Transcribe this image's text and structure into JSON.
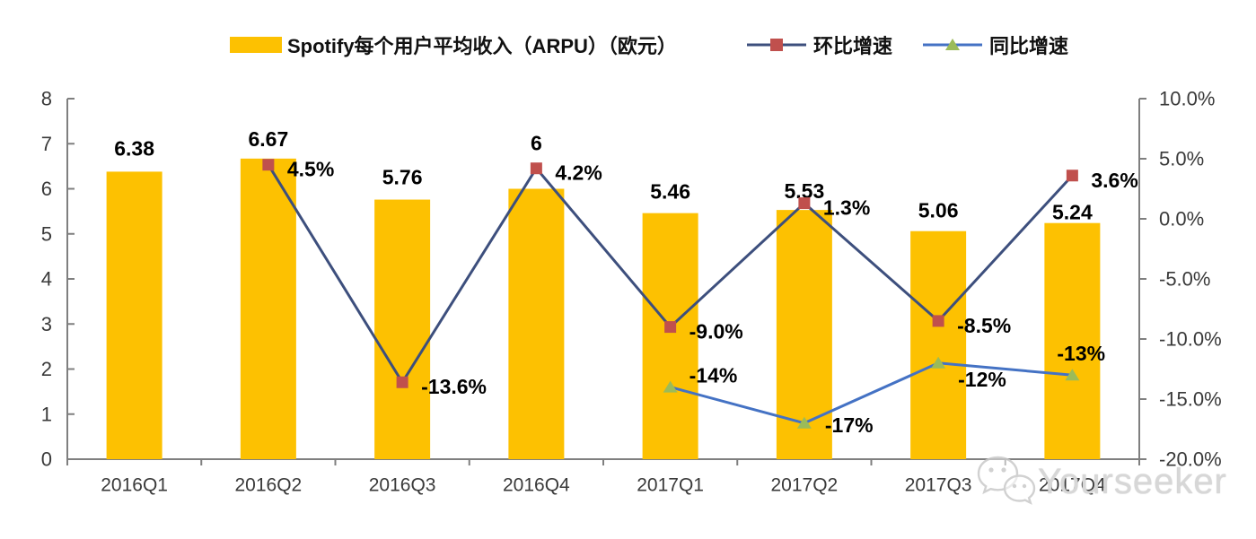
{
  "legend": {
    "bar_label": "Spotify每个用户平均收入（ARPU）（欧元）",
    "qoq_label": "环比增速",
    "yoy_label": "同比增速"
  },
  "watermark": {
    "text": "Yourseeker",
    "icon": "wechat-icon"
  },
  "colors": {
    "bar": "#FDC101",
    "qoq_line": "#3D4F7D",
    "qoq_marker": "#C0504D",
    "yoy_line": "#4472C4",
    "yoy_marker": "#9BBB59",
    "axis": "#7F7F7F",
    "tick_label": "#3A3A3A",
    "data_label": "#000000"
  },
  "chart_data": {
    "type": "bar+line",
    "categories": [
      "2016Q1",
      "2016Q2",
      "2016Q3",
      "2016Q4",
      "2017Q1",
      "2017Q2",
      "2017Q3",
      "2017Q4"
    ],
    "bar_series": {
      "name": "Spotify每个用户平均收入（ARPU）（欧元）",
      "axis": "left",
      "values": [
        6.38,
        6.67,
        5.76,
        6,
        5.46,
        5.53,
        5.06,
        5.24
      ],
      "labels": [
        "6.38",
        "6.67",
        "5.76",
        "6",
        "5.46",
        "5.53",
        "5.06",
        "5.24"
      ]
    },
    "line_series": [
      {
        "name": "环比增速",
        "axis": "right",
        "marker": "square",
        "values": [
          null,
          4.5,
          -13.6,
          4.2,
          -9.0,
          1.3,
          -8.5,
          3.6
        ],
        "labels": [
          "",
          "4.5%",
          "-13.6%",
          "4.2%",
          "-9.0%",
          "1.3%",
          "-8.5%",
          "3.6%"
        ]
      },
      {
        "name": "同比增速",
        "axis": "right",
        "marker": "triangle",
        "values": [
          null,
          null,
          null,
          null,
          -14,
          -17,
          -12,
          -13
        ],
        "labels": [
          "",
          "",
          "",
          "",
          "-14%",
          "-17%",
          "-12%",
          "-13%"
        ]
      }
    ],
    "y_left": {
      "min": 0,
      "max": 8,
      "step": 1,
      "tick_labels": [
        "0",
        "1",
        "2",
        "3",
        "4",
        "5",
        "6",
        "7",
        "8"
      ]
    },
    "y_right": {
      "min": -20,
      "max": 10,
      "step": 5,
      "tick_labels": [
        "-20.0%",
        "-15.0%",
        "-10.0%",
        "-5.0%",
        "0.0%",
        "5.0%",
        "10.0%"
      ]
    },
    "grid": false,
    "legend_position": "top"
  }
}
